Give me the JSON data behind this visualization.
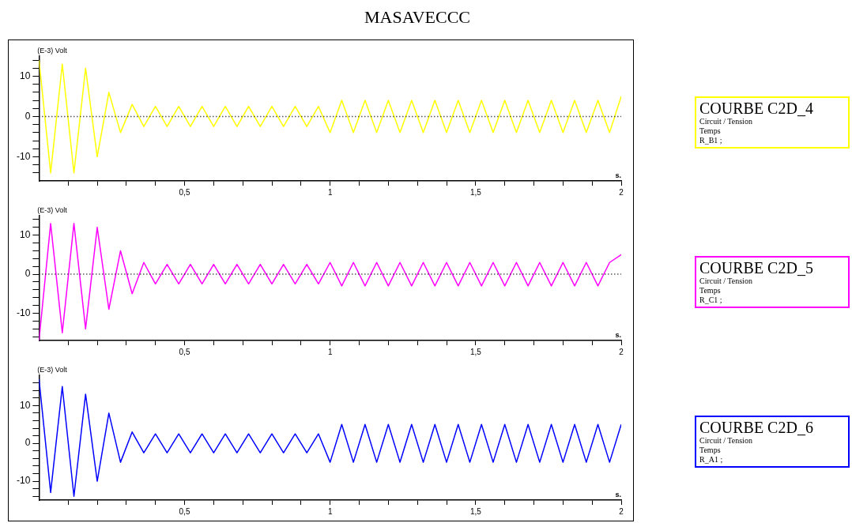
{
  "chart_data": [
    {
      "type": "line",
      "title": "MASAVECCC",
      "ylabel": "(E-3) Volt",
      "xlabel": "s.",
      "legend": "right",
      "marker": "none",
      "line_style": "solid",
      "grid": false,
      "x": [
        0,
        0.04,
        0.08,
        0.12,
        0.16,
        0.2,
        0.24,
        0.28,
        0.32,
        0.36,
        0.4,
        0.44,
        0.48,
        0.52,
        0.56,
        0.6,
        0.64,
        0.68,
        0.72,
        0.76,
        0.8,
        0.84,
        0.88,
        0.92,
        0.96,
        1.0,
        1.04,
        1.08,
        1.12,
        1.16,
        1.2,
        1.24,
        1.28,
        1.32,
        1.36,
        1.4,
        1.44,
        1.48,
        1.52,
        1.56,
        1.6,
        1.64,
        1.68,
        1.72,
        1.76,
        1.8,
        1.84,
        1.88,
        1.92,
        1.96,
        2.0
      ],
      "series": [
        {
          "name": "COURBE C2D_4",
          "color": "#ffff00",
          "values": [
            14,
            -14,
            13,
            -14,
            12,
            -10,
            6,
            -4,
            3,
            -2.5,
            2.5,
            -2.5,
            2.5,
            -2.5,
            2.5,
            -2.5,
            2.5,
            -2.5,
            2.5,
            -2.5,
            2.5,
            -2.5,
            2.5,
            -2.5,
            2.5,
            -4,
            4,
            -4,
            4,
            -4,
            4,
            -4,
            4,
            -4,
            4,
            -4,
            4,
            -4,
            4,
            -4,
            4,
            -4,
            4,
            -4,
            4,
            -4,
            4,
            -4,
            4,
            -4,
            5
          ]
        }
      ],
      "annotations": [
        "Circuit / Tension",
        "Temps",
        "R_B1 ;"
      ],
      "ref_lines": [
        {
          "axis": "y",
          "value": 0,
          "color": "#000000",
          "line_style": "dotted"
        }
      ],
      "xlim": [
        0,
        2
      ],
      "xticks": [
        {
          "value": 0.1,
          "label": null
        },
        {
          "value": 0.2,
          "label": null
        },
        {
          "value": 0.3,
          "label": null
        },
        {
          "value": 0.4,
          "label": null
        },
        {
          "value": 0.5,
          "label": "0,5"
        },
        {
          "value": 0.6,
          "label": null
        },
        {
          "value": 0.7,
          "label": null
        },
        {
          "value": 0.8,
          "label": null
        },
        {
          "value": 0.9,
          "label": null
        },
        {
          "value": 1,
          "label": "1"
        },
        {
          "value": 1.1,
          "label": null
        },
        {
          "value": 1.2,
          "label": null
        },
        {
          "value": 1.3,
          "label": null
        },
        {
          "value": 1.4,
          "label": null
        },
        {
          "value": 1.5,
          "label": "1,5"
        },
        {
          "value": 1.6,
          "label": null
        },
        {
          "value": 1.7,
          "label": null
        },
        {
          "value": 1.8,
          "label": null
        },
        {
          "value": 1.9,
          "label": null
        },
        {
          "value": 2,
          "label": "2"
        }
      ],
      "ylim": [
        -16,
        15
      ],
      "yticks": [
        {
          "value": -14,
          "label": null
        },
        {
          "value": -12,
          "label": null
        },
        -10,
        {
          "value": -8,
          "label": null
        },
        {
          "value": -6,
          "label": null
        },
        {
          "value": -4,
          "label": null
        },
        {
          "value": -2,
          "label": null
        },
        0,
        {
          "value": 2,
          "label": null
        },
        {
          "value": 4,
          "label": null
        },
        {
          "value": 6,
          "label": null
        },
        {
          "value": 8,
          "label": null
        },
        10,
        {
          "value": 12,
          "label": null
        },
        {
          "value": 14,
          "label": null
        }
      ]
    },
    {
      "type": "line",
      "ylabel": "(E-3) Volt",
      "xlabel": "s.",
      "legend": "right",
      "marker": "none",
      "line_style": "solid",
      "grid": false,
      "x": [
        0,
        0.04,
        0.08,
        0.12,
        0.16,
        0.2,
        0.24,
        0.28,
        0.32,
        0.36,
        0.4,
        0.44,
        0.48,
        0.52,
        0.56,
        0.6,
        0.64,
        0.68,
        0.72,
        0.76,
        0.8,
        0.84,
        0.88,
        0.92,
        0.96,
        1.0,
        1.04,
        1.08,
        1.12,
        1.16,
        1.2,
        1.24,
        1.28,
        1.32,
        1.36,
        1.4,
        1.44,
        1.48,
        1.52,
        1.56,
        1.6,
        1.64,
        1.68,
        1.72,
        1.76,
        1.8,
        1.84,
        1.88,
        1.92,
        1.96,
        2.0
      ],
      "series": [
        {
          "name": "COURBE C2D_5",
          "color": "#ff00ff",
          "values": [
            -17,
            13,
            -15,
            13,
            -14,
            12,
            -9,
            6,
            -5,
            3,
            -2.5,
            2.5,
            -2.5,
            2.5,
            -2.5,
            2.5,
            -2.5,
            2.5,
            -2.5,
            2.5,
            -2.5,
            2.5,
            -2.5,
            2.5,
            -2.5,
            3,
            -3,
            3,
            -3,
            3,
            -3,
            3,
            -3,
            3,
            -3,
            3,
            -3,
            3,
            -3,
            3,
            -3,
            3,
            -3,
            3,
            -3,
            3,
            -3,
            3,
            -3,
            3,
            5
          ]
        }
      ],
      "annotations": [
        "Circuit / Tension",
        "Temps",
        "R_C1 ;"
      ],
      "ref_lines": [
        {
          "axis": "y",
          "value": 0,
          "color": "#000000",
          "line_style": "dotted"
        }
      ],
      "xlim": [
        0,
        2
      ],
      "xticks": [
        {
          "value": 0.1,
          "label": null
        },
        {
          "value": 0.2,
          "label": null
        },
        {
          "value": 0.3,
          "label": null
        },
        {
          "value": 0.4,
          "label": null
        },
        {
          "value": 0.5,
          "label": "0,5"
        },
        {
          "value": 0.6,
          "label": null
        },
        {
          "value": 0.7,
          "label": null
        },
        {
          "value": 0.8,
          "label": null
        },
        {
          "value": 0.9,
          "label": null
        },
        {
          "value": 1,
          "label": "1"
        },
        {
          "value": 1.1,
          "label": null
        },
        {
          "value": 1.2,
          "label": null
        },
        {
          "value": 1.3,
          "label": null
        },
        {
          "value": 1.4,
          "label": null
        },
        {
          "value": 1.5,
          "label": "1,5"
        },
        {
          "value": 1.6,
          "label": null
        },
        {
          "value": 1.7,
          "label": null
        },
        {
          "value": 1.8,
          "label": null
        },
        {
          "value": 1.9,
          "label": null
        },
        {
          "value": 2,
          "label": "2"
        }
      ],
      "ylim": [
        -17,
        15
      ],
      "yticks": [
        {
          "value": -16,
          "label": null
        },
        {
          "value": -14,
          "label": null
        },
        {
          "value": -12,
          "label": null
        },
        -10,
        {
          "value": -8,
          "label": null
        },
        {
          "value": -6,
          "label": null
        },
        {
          "value": -4,
          "label": null
        },
        {
          "value": -2,
          "label": null
        },
        0,
        {
          "value": 2,
          "label": null
        },
        {
          "value": 4,
          "label": null
        },
        {
          "value": 6,
          "label": null
        },
        {
          "value": 8,
          "label": null
        },
        10,
        {
          "value": 12,
          "label": null
        },
        {
          "value": 14,
          "label": null
        }
      ]
    },
    {
      "type": "line",
      "ylabel": "(E-3) Volt",
      "xlabel": "s.",
      "legend": "right",
      "marker": "none",
      "line_style": "solid",
      "grid": false,
      "x": [
        0,
        0.04,
        0.08,
        0.12,
        0.16,
        0.2,
        0.24,
        0.28,
        0.32,
        0.36,
        0.4,
        0.44,
        0.48,
        0.52,
        0.56,
        0.6,
        0.64,
        0.68,
        0.72,
        0.76,
        0.8,
        0.84,
        0.88,
        0.92,
        0.96,
        1.0,
        1.04,
        1.08,
        1.12,
        1.16,
        1.2,
        1.24,
        1.28,
        1.32,
        1.36,
        1.4,
        1.44,
        1.48,
        1.52,
        1.56,
        1.6,
        1.64,
        1.68,
        1.72,
        1.76,
        1.8,
        1.84,
        1.88,
        1.92,
        1.96,
        2.0
      ],
      "series": [
        {
          "name": "COURBE C2D_6",
          "color": "#0000ff",
          "values": [
            17,
            -13,
            15,
            -14,
            13,
            -10,
            8,
            -5,
            3,
            -2.5,
            2.5,
            -2.5,
            2.5,
            -2.5,
            2.5,
            -2.5,
            2.5,
            -2.5,
            2.5,
            -2.5,
            2.5,
            -2.5,
            2.5,
            -2.5,
            2.5,
            -5,
            5,
            -5,
            5,
            -5,
            5,
            -5,
            5,
            -5,
            5,
            -5,
            5,
            -5,
            5,
            -5,
            5,
            -5,
            5,
            -5,
            5,
            -5,
            5,
            -5,
            5,
            -5,
            5
          ]
        }
      ],
      "annotations": [
        "Circuit / Tension",
        "Temps",
        "R_A1 ;"
      ],
      "xlim": [
        0,
        2
      ],
      "xticks": [
        {
          "value": 0.1,
          "label": null
        },
        {
          "value": 0.2,
          "label": null
        },
        {
          "value": 0.3,
          "label": null
        },
        {
          "value": 0.4,
          "label": null
        },
        {
          "value": 0.5,
          "label": "0,5"
        },
        {
          "value": 0.6,
          "label": null
        },
        {
          "value": 0.7,
          "label": null
        },
        {
          "value": 0.8,
          "label": null
        },
        {
          "value": 0.9,
          "label": null
        },
        {
          "value": 1,
          "label": "1"
        },
        {
          "value": 1.1,
          "label": null
        },
        {
          "value": 1.2,
          "label": null
        },
        {
          "value": 1.3,
          "label": null
        },
        {
          "value": 1.4,
          "label": null
        },
        {
          "value": 1.5,
          "label": "1,5"
        },
        {
          "value": 1.6,
          "label": null
        },
        {
          "value": 1.7,
          "label": null
        },
        {
          "value": 1.8,
          "label": null
        },
        {
          "value": 1.9,
          "label": null
        },
        {
          "value": 2,
          "label": "2"
        }
      ],
      "ylim": [
        -15,
        18
      ],
      "yticks": [
        {
          "value": -14,
          "label": null
        },
        {
          "value": -12,
          "label": null
        },
        -10,
        {
          "value": -8,
          "label": null
        },
        {
          "value": -6,
          "label": null
        },
        {
          "value": -4,
          "label": null
        },
        {
          "value": -2,
          "label": null
        },
        0,
        {
          "value": 2,
          "label": null
        },
        {
          "value": 4,
          "label": null
        },
        {
          "value": 6,
          "label": null
        },
        {
          "value": 8,
          "label": null
        },
        10,
        {
          "value": 12,
          "label": null
        },
        {
          "value": 14,
          "label": null
        },
        {
          "value": 16,
          "label": null
        }
      ]
    }
  ]
}
